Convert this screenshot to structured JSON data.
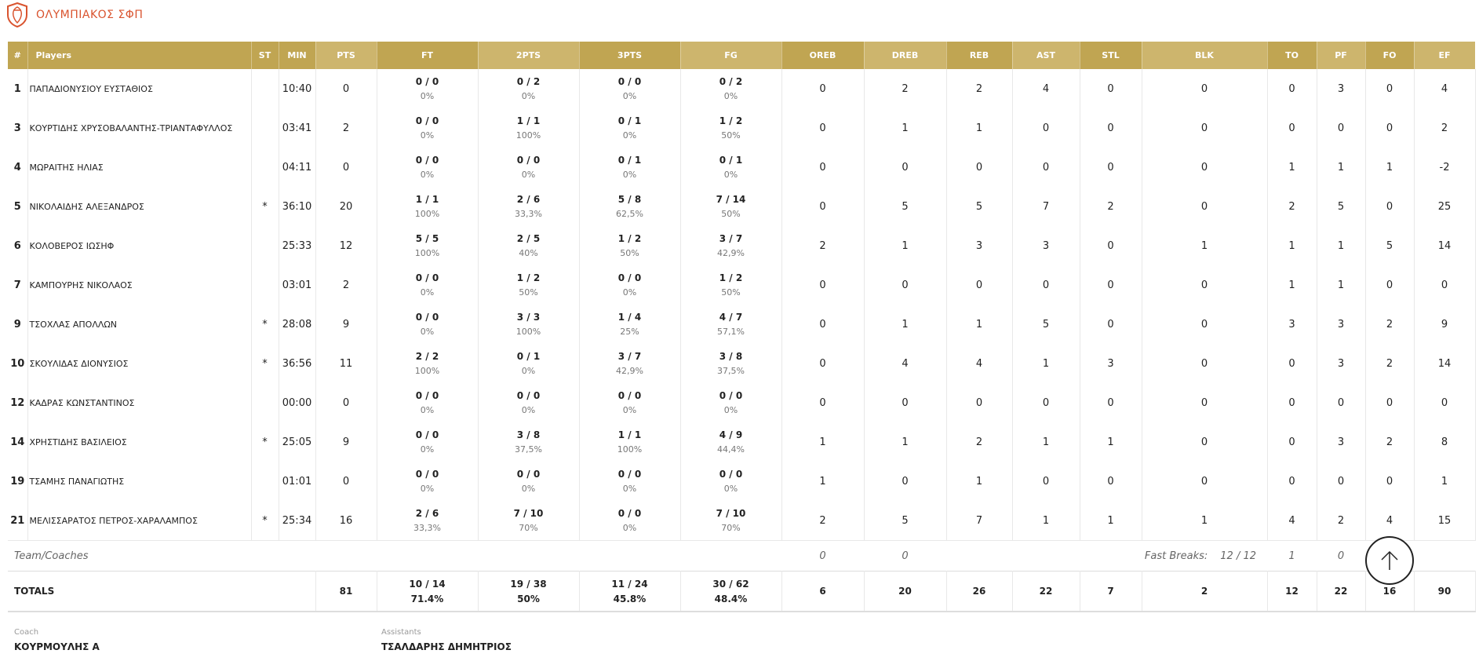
{
  "team": {
    "name": "ΟΛΥΜΠΙΑΚΟΣ ΣΦΠ"
  },
  "headers": [
    "#",
    "Players",
    "ST",
    "MIN",
    "PTS",
    "FT",
    "2PTS",
    "3PTS",
    "FG",
    "OREB",
    "DREB",
    "REB",
    "AST",
    "STL",
    "BLK",
    "TO",
    "PF",
    "FO",
    "EF"
  ],
  "players": [
    {
      "no": "1",
      "name": "ΠΑΠΑΔΙΟΝΥΣΙΟΥ ΕΥΣΤΑΘΙΟΣ",
      "st": "",
      "min": "10:40",
      "pts": "0",
      "ft": "0 / 0",
      "ft_pct": "0%",
      "p2": "0 / 2",
      "p2_pct": "0%",
      "p3": "0 / 0",
      "p3_pct": "0%",
      "fg": "0 / 2",
      "fg_pct": "0%",
      "oreb": "0",
      "dreb": "2",
      "reb": "2",
      "ast": "4",
      "stl": "0",
      "blk": "0",
      "to": "0",
      "pf": "3",
      "fo": "0",
      "ef": "4"
    },
    {
      "no": "3",
      "name": "ΚΟΥΡΤΙΔΗΣ ΧΡΥΣΟΒΑΛΑΝΤΗΣ-ΤΡΙΑΝΤΑΦΥΛΛΟΣ",
      "st": "",
      "min": "03:41",
      "pts": "2",
      "ft": "0 / 0",
      "ft_pct": "0%",
      "p2": "1 / 1",
      "p2_pct": "100%",
      "p3": "0 / 1",
      "p3_pct": "0%",
      "fg": "1 / 2",
      "fg_pct": "50%",
      "oreb": "0",
      "dreb": "1",
      "reb": "1",
      "ast": "0",
      "stl": "0",
      "blk": "0",
      "to": "0",
      "pf": "0",
      "fo": "0",
      "ef": "2"
    },
    {
      "no": "4",
      "name": "ΜΩΡΑΙΤΗΣ ΗΛΙΑΣ",
      "st": "",
      "min": "04:11",
      "pts": "0",
      "ft": "0 / 0",
      "ft_pct": "0%",
      "p2": "0 / 0",
      "p2_pct": "0%",
      "p3": "0 / 1",
      "p3_pct": "0%",
      "fg": "0 / 1",
      "fg_pct": "0%",
      "oreb": "0",
      "dreb": "0",
      "reb": "0",
      "ast": "0",
      "stl": "0",
      "blk": "0",
      "to": "1",
      "pf": "1",
      "fo": "1",
      "ef": "-2"
    },
    {
      "no": "5",
      "name": "ΝΙΚΟΛΑΙΔΗΣ ΑΛΕΞΑΝΔΡΟΣ",
      "st": "*",
      "min": "36:10",
      "pts": "20",
      "ft": "1 / 1",
      "ft_pct": "100%",
      "p2": "2 / 6",
      "p2_pct": "33,3%",
      "p3": "5 / 8",
      "p3_pct": "62,5%",
      "fg": "7 / 14",
      "fg_pct": "50%",
      "oreb": "0",
      "dreb": "5",
      "reb": "5",
      "ast": "7",
      "stl": "2",
      "blk": "0",
      "to": "2",
      "pf": "5",
      "fo": "0",
      "ef": "25"
    },
    {
      "no": "6",
      "name": "ΚΟΛΟΒΕΡΟΣ ΙΩΣΗΦ",
      "st": "",
      "min": "25:33",
      "pts": "12",
      "ft": "5 / 5",
      "ft_pct": "100%",
      "p2": "2 / 5",
      "p2_pct": "40%",
      "p3": "1 / 2",
      "p3_pct": "50%",
      "fg": "3 / 7",
      "fg_pct": "42,9%",
      "oreb": "2",
      "dreb": "1",
      "reb": "3",
      "ast": "3",
      "stl": "0",
      "blk": "1",
      "to": "1",
      "pf": "1",
      "fo": "5",
      "ef": "14"
    },
    {
      "no": "7",
      "name": "ΚΑΜΠΟΥΡΗΣ ΝΙΚΟΛΑΟΣ",
      "st": "",
      "min": "03:01",
      "pts": "2",
      "ft": "0 / 0",
      "ft_pct": "0%",
      "p2": "1 / 2",
      "p2_pct": "50%",
      "p3": "0 / 0",
      "p3_pct": "0%",
      "fg": "1 / 2",
      "fg_pct": "50%",
      "oreb": "0",
      "dreb": "0",
      "reb": "0",
      "ast": "0",
      "stl": "0",
      "blk": "0",
      "to": "1",
      "pf": "1",
      "fo": "0",
      "ef": "0"
    },
    {
      "no": "9",
      "name": "ΤΣΟΧΛΑΣ ΑΠΟΛΛΩΝ",
      "st": "*",
      "min": "28:08",
      "pts": "9",
      "ft": "0 / 0",
      "ft_pct": "0%",
      "p2": "3 / 3",
      "p2_pct": "100%",
      "p3": "1 / 4",
      "p3_pct": "25%",
      "fg": "4 / 7",
      "fg_pct": "57,1%",
      "oreb": "0",
      "dreb": "1",
      "reb": "1",
      "ast": "5",
      "stl": "0",
      "blk": "0",
      "to": "3",
      "pf": "3",
      "fo": "2",
      "ef": "9"
    },
    {
      "no": "10",
      "name": "ΣΚΟΥΛΙΔΑΣ ΔΙΟΝΥΣΙΟΣ",
      "st": "*",
      "min": "36:56",
      "pts": "11",
      "ft": "2 / 2",
      "ft_pct": "100%",
      "p2": "0 / 1",
      "p2_pct": "0%",
      "p3": "3 / 7",
      "p3_pct": "42,9%",
      "fg": "3 / 8",
      "fg_pct": "37,5%",
      "oreb": "0",
      "dreb": "4",
      "reb": "4",
      "ast": "1",
      "stl": "3",
      "blk": "0",
      "to": "0",
      "pf": "3",
      "fo": "2",
      "ef": "14"
    },
    {
      "no": "12",
      "name": "ΚΑΔΡΑΣ ΚΩΝΣΤΑΝΤΙΝΟΣ",
      "st": "",
      "min": "00:00",
      "pts": "0",
      "ft": "0 / 0",
      "ft_pct": "0%",
      "p2": "0 / 0",
      "p2_pct": "0%",
      "p3": "0 / 0",
      "p3_pct": "0%",
      "fg": "0 / 0",
      "fg_pct": "0%",
      "oreb": "0",
      "dreb": "0",
      "reb": "0",
      "ast": "0",
      "stl": "0",
      "blk": "0",
      "to": "0",
      "pf": "0",
      "fo": "0",
      "ef": "0"
    },
    {
      "no": "14",
      "name": "ΧΡΗΣΤΙΔΗΣ ΒΑΣΙΛΕΙΟΣ",
      "st": "*",
      "min": "25:05",
      "pts": "9",
      "ft": "0 / 0",
      "ft_pct": "0%",
      "p2": "3 / 8",
      "p2_pct": "37,5%",
      "p3": "1 / 1",
      "p3_pct": "100%",
      "fg": "4 / 9",
      "fg_pct": "44,4%",
      "oreb": "1",
      "dreb": "1",
      "reb": "2",
      "ast": "1",
      "stl": "1",
      "blk": "0",
      "to": "0",
      "pf": "3",
      "fo": "2",
      "ef": "8"
    },
    {
      "no": "19",
      "name": "ΤΣΑΜΗΣ ΠΑΝΑΓΙΩΤΗΣ",
      "st": "",
      "min": "01:01",
      "pts": "0",
      "ft": "0 / 0",
      "ft_pct": "0%",
      "p2": "0 / 0",
      "p2_pct": "0%",
      "p3": "0 / 0",
      "p3_pct": "0%",
      "fg": "0 / 0",
      "fg_pct": "0%",
      "oreb": "1",
      "dreb": "0",
      "reb": "1",
      "ast": "0",
      "stl": "0",
      "blk": "0",
      "to": "0",
      "pf": "0",
      "fo": "0",
      "ef": "1"
    },
    {
      "no": "21",
      "name": "ΜΕΛΙΣΣΑΡΑΤΟΣ ΠΕΤΡΟΣ-ΧΑΡΑΛΑΜΠΟΣ",
      "st": "*",
      "min": "25:34",
      "pts": "16",
      "ft": "2 / 6",
      "ft_pct": "33,3%",
      "p2": "7 / 10",
      "p2_pct": "70%",
      "p3": "0 / 0",
      "p3_pct": "0%",
      "fg": "7 / 10",
      "fg_pct": "70%",
      "oreb": "2",
      "dreb": "5",
      "reb": "7",
      "ast": "1",
      "stl": "1",
      "blk": "1",
      "to": "4",
      "pf": "2",
      "fo": "4",
      "ef": "15"
    }
  ],
  "team_coaches": {
    "label": "Team/Coaches",
    "oreb": "0",
    "dreb": "0",
    "fast_breaks_label": "Fast Breaks:",
    "fast_breaks_value": "12 / 12",
    "to": "1",
    "pf": "0"
  },
  "totals": {
    "label": "TOTALS",
    "pts": "81",
    "ft": "10 / 14",
    "ft_pct": "71.4%",
    "p2": "19 / 38",
    "p2_pct": "50%",
    "p3": "11 / 24",
    "p3_pct": "45.8%",
    "fg": "30 / 62",
    "fg_pct": "48.4%",
    "oreb": "6",
    "dreb": "20",
    "reb": "26",
    "ast": "22",
    "stl": "7",
    "blk": "2",
    "to": "12",
    "pf": "22",
    "fo": "16",
    "ef": "90"
  },
  "coach": {
    "label": "Coach",
    "name": "ΚΟΥΡΜΟΥΛΗΣ Α"
  },
  "assistants": {
    "label": "Assistants",
    "name": "ΤΣΑΛΔΑΡΗΣ ΔΗΜΗΤΡΙΟΣ"
  },
  "colors": {
    "header_dark": "#c0a552",
    "header_light": "#cdb56d",
    "team_name": "#d9532e"
  },
  "icons": {
    "scroll_top": "arrow-up-icon",
    "logo": "team-logo-icon"
  }
}
